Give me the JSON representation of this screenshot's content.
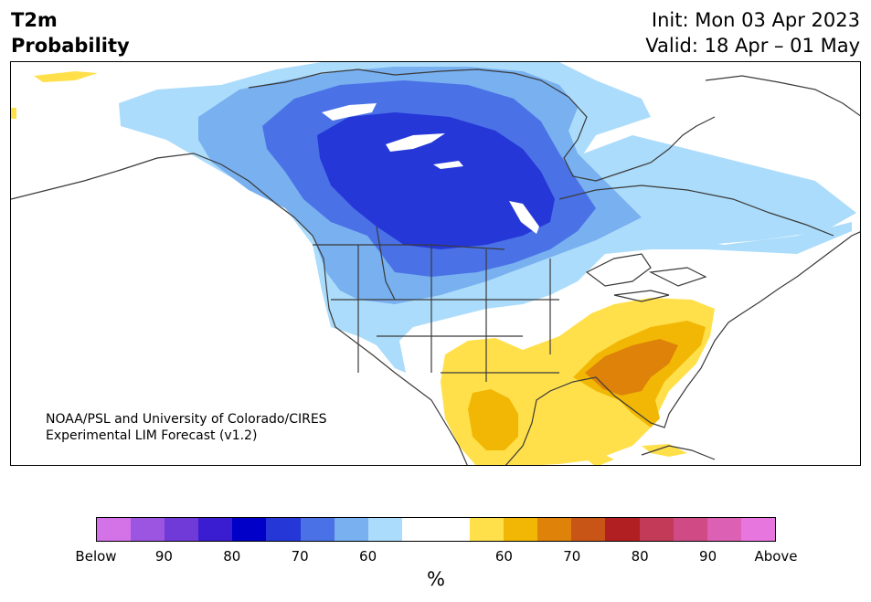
{
  "header": {
    "title_line1": "T2m",
    "title_line2": "Probability",
    "init_text": "Init: Mon 03 Apr 2023",
    "valid_text": "Valid: 18 Apr – 01 May"
  },
  "credit": {
    "line1": "NOAA/PSL and University of Colorado/CIRES",
    "line2": "Experimental LIM Forecast (v1.2)"
  },
  "colorbar": {
    "colors": [
      "#d473e8",
      "#9c55e0",
      "#6f3ad8",
      "#3a1dd0",
      "#0000c8",
      "#2637d8",
      "#4a72e6",
      "#78b0f0",
      "#acdcfb",
      "#ffffff",
      "#ffffff",
      "#ffe04b",
      "#f2b705",
      "#de8209",
      "#c85416",
      "#b11f22",
      "#c23a58",
      "#d04b86",
      "#dc60b4",
      "#e777df"
    ],
    "labels": [
      "Below",
      "90",
      "80",
      "70",
      "60",
      "60",
      "70",
      "80",
      "90",
      "Above"
    ],
    "unit": "%"
  },
  "map": {
    "colors": {
      "ocean": "#ffffff",
      "prob_60_below": "#acdcfb",
      "prob_70_below": "#78b0f0",
      "prob_80_below": "#4a72e6",
      "prob_90_below": "#2637d8",
      "prob_60_above": "#ffe04b",
      "prob_70_above": "#f2b705",
      "prob_80_above": "#de8209",
      "coastline": "#3a3a3a"
    }
  }
}
